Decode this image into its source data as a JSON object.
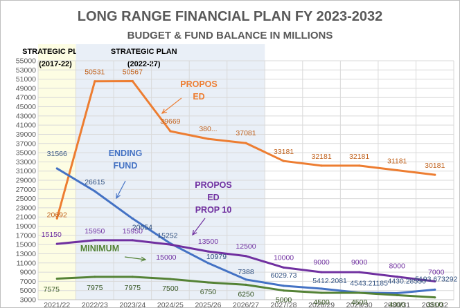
{
  "chart_data": {
    "type": "line",
    "title": "LONG RANGE FINANCIAL PLAN FY 2023-2032",
    "subtitle": "BUDGET & FUND BALANCE IN MILLIONS",
    "categories": [
      "2021/22",
      "2022/23",
      "2023/24",
      "2024/25",
      "2025/26",
      "2026/27",
      "2027/28",
      "2028/29",
      "2029/30",
      "2030/31",
      "2031/32"
    ],
    "ylim": [
      3000,
      55000
    ],
    "ytick_step": 2000,
    "grid": true,
    "plan_periods": [
      {
        "label_line1": "STRATEGIC  PLAN",
        "label_line2": "(2017-22)",
        "from": "2021/22",
        "to": "2021/22",
        "color": "#fdfde3"
      },
      {
        "label_line1": "STRATEGIC  PLAN",
        "label_line2": "(2022-27)",
        "from": "2022/23",
        "to": "2026/27",
        "color": "#e9eff7"
      }
    ],
    "series": [
      {
        "name": "PROPOSED",
        "color": "#ed7d31",
        "label_color": "#c0601a",
        "values": [
          20692,
          50531,
          50567,
          39669,
          38000,
          37081,
          33181,
          32181,
          32181,
          31181,
          30181
        ],
        "labels": [
          "20692",
          "50531",
          "50567",
          "39669",
          "380...",
          "37081",
          "33181",
          "32181",
          "32181",
          "31181",
          "30181"
        ]
      },
      {
        "name": "ENDING FUND",
        "color": "#4472c4",
        "label_color": "#2f4f7f",
        "values": [
          31566,
          26615,
          20654,
          15252,
          10979,
          7388,
          6029.73,
          5412.2081,
          4543.21185,
          4430.2855,
          5193.673292
        ],
        "labels": [
          "31566",
          "26615",
          "20654",
          "15252",
          "10979",
          "7388",
          "6029.73",
          "5412.2081",
          "4543.21185",
          "4430.28550",
          "5193.673292"
        ]
      },
      {
        "name": "PROPOSED PROP 10",
        "color": "#7030a0",
        "label_color": "#7030a0",
        "values": [
          15150,
          15950,
          15950,
          15000,
          13500,
          12500,
          10000,
          9000,
          9000,
          8000,
          7000
        ],
        "labels": [
          "15150",
          "15950",
          "15950",
          "15000",
          "13500",
          "12500",
          "10000",
          "9000",
          "9000",
          "8000",
          "7000"
        ]
      },
      {
        "name": "MINIMUM",
        "color": "#548235",
        "label_color": "#375623",
        "values": [
          7575,
          7975,
          7975,
          7500,
          6750,
          6250,
          5000,
          4500,
          4500,
          4000,
          3500
        ],
        "labels": [
          "7575",
          "7975",
          "7975",
          "7500",
          "6750",
          "6250",
          "5000",
          "4500",
          "4500",
          "4000",
          "3500"
        ]
      }
    ],
    "annotations": [
      {
        "series": "PROPOSED",
        "lines": [
          "PROPOS",
          "ED"
        ],
        "color": "#ed7d31"
      },
      {
        "series": "ENDING FUND",
        "lines": [
          "ENDING",
          "FUND"
        ],
        "color": "#4472c4"
      },
      {
        "series": "PROPOSED PROP 10",
        "lines": [
          "PROPOS",
          "ED",
          "PROP 10"
        ],
        "color": "#7030a0"
      },
      {
        "series": "MINIMUM",
        "lines": [
          "MINIMUM"
        ],
        "color": "#548235"
      }
    ]
  }
}
